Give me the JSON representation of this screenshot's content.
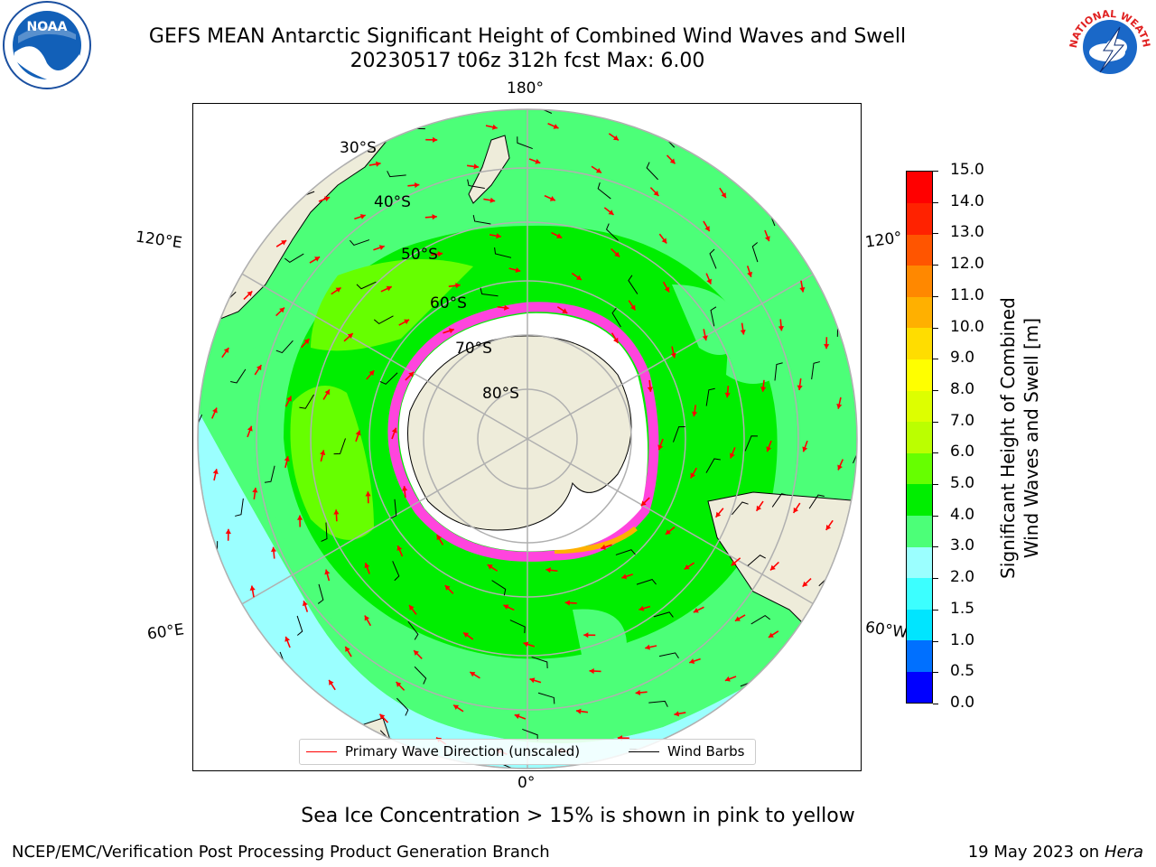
{
  "title_line1": "GEFS MEAN Antarctic Significant Height of Combined Wind Waves and Swell",
  "title_line2": "20230517 t06z 312h fcst   Max: 6.00",
  "logos": {
    "left": "NOAA",
    "right": "NATIONAL WEATHER SERVICE"
  },
  "longitude_labels": {
    "top": "180°",
    "bottom": "0°",
    "left_upper": "120°E",
    "left_lower": "60°E",
    "right_upper": "120°",
    "right_lower": "60°W"
  },
  "latitude_labels": [
    "30°S",
    "40°S",
    "50°S",
    "60°S",
    "70°S",
    "80°S"
  ],
  "legend": {
    "wave_direction": "Primary Wave Direction (unscaled)",
    "wind_barbs": "Wind Barbs"
  },
  "colorbar": {
    "title_line1": "Significant Height of Combined",
    "title_line2": "Wind Waves and Swell [m]",
    "ticks": [
      "0.0",
      "0.5",
      "1.0",
      "1.5",
      "2.0",
      "3.0",
      "4.0",
      "5.0",
      "6.0",
      "7.0",
      "8.0",
      "9.0",
      "10.0",
      "11.0",
      "12.0",
      "13.0",
      "14.0",
      "15.0"
    ],
    "colors": [
      "#0000ff",
      "#0070ff",
      "#00e5ff",
      "#3cffff",
      "#9bffff",
      "#4cff78",
      "#00ee00",
      "#66ff00",
      "#bbff00",
      "#ddff00",
      "#ffff00",
      "#ffdd00",
      "#ffb000",
      "#ff8800",
      "#ff5500",
      "#ff2200",
      "#ff0000"
    ]
  },
  "colors": {
    "land": "#eeecda",
    "ice_sheet": "#ffffff",
    "grid": "#b0b0b0",
    "wave_arrow": "#ff0000",
    "wind_barb": "#000000"
  },
  "subtitle": "Sea Ice Concentration > 15% is shown in pink to yellow",
  "footer": {
    "left": "NCEP/EMC/Verification Post Processing Product Generation Branch",
    "date": "19 May 2023 on",
    "machine": "Hera"
  }
}
